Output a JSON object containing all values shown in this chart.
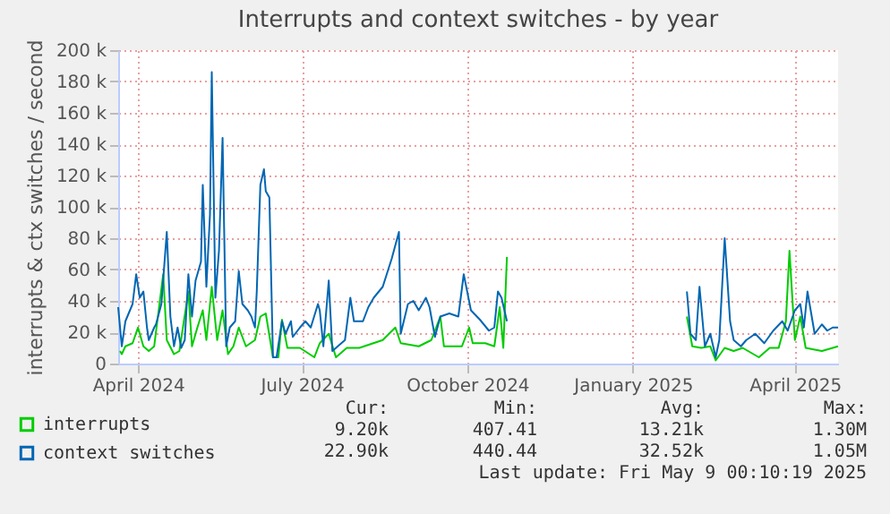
{
  "chart_data": {
    "type": "line",
    "title": "Interrupts and context switches - by year",
    "ylabel": "interrupts & ctx switches / second",
    "xlim": [
      "2024-04-04",
      "2025-05-09"
    ],
    "xticks": [
      {
        "value": "2024-04-15",
        "label": "April 2024"
      },
      {
        "value": "2024-07-15",
        "label": "July 2024"
      },
      {
        "value": "2024-10-15",
        "label": "October 2024"
      },
      {
        "value": "2025-01-15",
        "label": "January 2025"
      },
      {
        "value": "2025-04-15",
        "label": "April 2025"
      }
    ],
    "ylim": [
      0,
      200000
    ],
    "yticks": [
      0,
      {
        "value": 20000,
        "label": "20 k"
      },
      {
        "value": 40000,
        "label": "40 k"
      },
      {
        "value": 60000,
        "label": "60 k"
      },
      {
        "value": 80000,
        "label": "80 k"
      },
      {
        "value": 100000,
        "label": "100 k"
      },
      {
        "value": 120000,
        "label": "120 k"
      },
      {
        "value": 140000,
        "label": "140 k"
      },
      {
        "value": 160000,
        "label": "160 k"
      },
      {
        "value": 180000,
        "label": "180 k"
      },
      {
        "value": 200000,
        "label": "200 k"
      }
    ],
    "grid": true,
    "legend": "bottom left",
    "marker": "none",
    "line_style": "solid",
    "series": [
      {
        "name": "interrupts",
        "color": "#00cc00",
        "x": [
          "2024-04-05",
          "2024-04-06",
          "2024-04-08",
          "2024-04-12",
          "2024-04-15",
          "2024-04-18",
          "2024-04-21",
          "2024-04-24",
          "2024-04-29",
          "2024-05-01",
          "2024-05-05",
          "2024-05-08",
          "2024-05-13",
          "2024-05-15",
          "2024-05-18",
          "2024-05-21",
          "2024-05-23",
          "2024-05-26",
          "2024-05-29",
          "2024-06-01",
          "2024-06-04",
          "2024-06-07",
          "2024-06-10",
          "2024-06-14",
          "2024-06-19",
          "2024-06-22",
          "2024-06-25",
          "2024-06-29",
          "2024-07-02",
          "2024-07-04",
          "2024-07-07",
          "2024-07-14",
          "2024-07-22",
          "2024-07-25",
          "2024-07-30",
          "2024-08-03",
          "2024-08-09",
          "2024-08-16",
          "2024-08-29",
          "2024-09-05",
          "2024-09-08",
          "2024-09-18",
          "2024-09-25",
          "2024-09-30",
          "2024-10-02",
          "2024-10-12",
          "2024-10-16",
          "2024-10-18",
          "2024-10-25",
          "2024-10-30",
          "2024-11-02",
          "2024-11-04",
          "2024-11-06",
          "2024-12-25",
          "2025-02-14",
          "2025-02-17",
          "2025-02-22",
          "2025-02-27",
          "2025-03-02",
          "2025-03-07",
          "2025-03-12",
          "2025-03-17",
          "2025-03-26",
          "2025-04-01",
          "2025-04-06",
          "2025-04-10",
          "2025-04-12",
          "2025-04-15",
          "2025-04-18",
          "2025-04-21",
          "2025-04-30",
          "2025-05-06",
          "2025-05-09"
        ],
        "values": [
          8000,
          6000,
          11000,
          13000,
          23000,
          11000,
          8000,
          11000,
          57000,
          15000,
          6000,
          8000,
          46000,
          11000,
          23000,
          34000,
          15000,
          49000,
          15000,
          34000,
          6000,
          11000,
          23000,
          11000,
          15000,
          30000,
          32000,
          4000,
          4000,
          28000,
          10000,
          10000,
          4000,
          13000,
          19000,
          4000,
          10000,
          10000,
          15000,
          23000,
          13000,
          11000,
          15000,
          30000,
          11000,
          11000,
          23000,
          13000,
          13000,
          11000,
          36000,
          10000,
          68000,
          null,
          30000,
          11000,
          10000,
          11000,
          2000,
          10000,
          8000,
          10000,
          4000,
          10000,
          10000,
          27000,
          72000,
          15000,
          30000,
          10000,
          8000,
          10000,
          11000
        ]
      },
      {
        "name": "context switches",
        "color": "#0066b3",
        "x": [
          "2024-04-04",
          "2024-04-06",
          "2024-04-08",
          "2024-04-12",
          "2024-04-14",
          "2024-04-16",
          "2024-04-18",
          "2024-04-20",
          "2024-04-21",
          "2024-04-24",
          "2024-04-25",
          "2024-04-28",
          "2024-05-01",
          "2024-05-03",
          "2024-05-05",
          "2024-05-07",
          "2024-05-09",
          "2024-05-11",
          "2024-05-13",
          "2024-05-15",
          "2024-05-17",
          "2024-05-20",
          "2024-05-21",
          "2024-05-23",
          "2024-05-25",
          "2024-05-26",
          "2024-05-28",
          "2024-05-30",
          "2024-06-01",
          "2024-06-03",
          "2024-06-05",
          "2024-06-08",
          "2024-06-10",
          "2024-06-12",
          "2024-06-15",
          "2024-06-17",
          "2024-06-19",
          "2024-06-20",
          "2024-06-22",
          "2024-06-24",
          "2024-06-25",
          "2024-06-27",
          "2024-06-29",
          "2024-07-01",
          "2024-07-04",
          "2024-07-06",
          "2024-07-09",
          "2024-07-10",
          "2024-07-14",
          "2024-07-17",
          "2024-07-20",
          "2024-07-24",
          "2024-07-25",
          "2024-07-27",
          "2024-07-30",
          "2024-08-01",
          "2024-08-04",
          "2024-08-08",
          "2024-08-11",
          "2024-08-13",
          "2024-08-18",
          "2024-08-21",
          "2024-08-24",
          "2024-08-29",
          "2024-09-03",
          "2024-09-07",
          "2024-09-08",
          "2024-09-12",
          "2024-09-15",
          "2024-09-18",
          "2024-09-22",
          "2024-09-24",
          "2024-09-27",
          "2024-09-30",
          "2024-10-05",
          "2024-10-10",
          "2024-10-13",
          "2024-10-17",
          "2024-10-22",
          "2024-10-27",
          "2024-10-30",
          "2024-11-01",
          "2024-11-03",
          "2024-11-06",
          "2024-12-25",
          "2025-02-14",
          "2025-02-16",
          "2025-02-19",
          "2025-02-21",
          "2025-02-24",
          "2025-02-27",
          "2025-03-02",
          "2025-03-04",
          "2025-03-07",
          "2025-03-10",
          "2025-03-12",
          "2025-03-16",
          "2025-03-19",
          "2025-03-24",
          "2025-03-29",
          "2025-04-03",
          "2025-04-08",
          "2025-04-11",
          "2025-04-15",
          "2025-04-18",
          "2025-04-20",
          "2025-04-22",
          "2025-04-26",
          "2025-04-30",
          "2025-05-03",
          "2025-05-06",
          "2025-05-09"
        ],
        "values": [
          36000,
          11000,
          27000,
          38000,
          57000,
          42000,
          46000,
          23000,
          15000,
          23000,
          25000,
          38000,
          84000,
          30000,
          11000,
          23000,
          10000,
          15000,
          57000,
          30000,
          53000,
          65000,
          114000,
          49000,
          95000,
          186000,
          42000,
          72000,
          144000,
          11000,
          23000,
          27000,
          59000,
          38000,
          34000,
          30000,
          23000,
          46000,
          114000,
          124000,
          110000,
          106000,
          4000,
          4000,
          27000,
          19000,
          27000,
          17000,
          23000,
          27000,
          23000,
          38000,
          34000,
          11000,
          53000,
          8000,
          11000,
          15000,
          42000,
          27000,
          27000,
          36000,
          42000,
          49000,
          67000,
          84000,
          19000,
          38000,
          40000,
          34000,
          42000,
          36000,
          17000,
          30000,
          32000,
          30000,
          57000,
          34000,
          28000,
          21000,
          23000,
          46000,
          42000,
          27000,
          null,
          46000,
          19000,
          15000,
          49000,
          11000,
          19000,
          4000,
          15000,
          80000,
          27000,
          15000,
          11000,
          15000,
          19000,
          13000,
          21000,
          27000,
          21000,
          34000,
          38000,
          23000,
          46000,
          19000,
          25000,
          21000,
          23000,
          23000
        ]
      }
    ],
    "annotations": [
      "Cur:",
      "Min:",
      "Avg:",
      "Max:",
      "9.20k",
      "407.41",
      "13.21k",
      "1.30M",
      "22.90k",
      "440.44",
      "32.52k",
      "1.05M",
      "Last update: Fri May  9 00:10:19 2025"
    ]
  }
}
